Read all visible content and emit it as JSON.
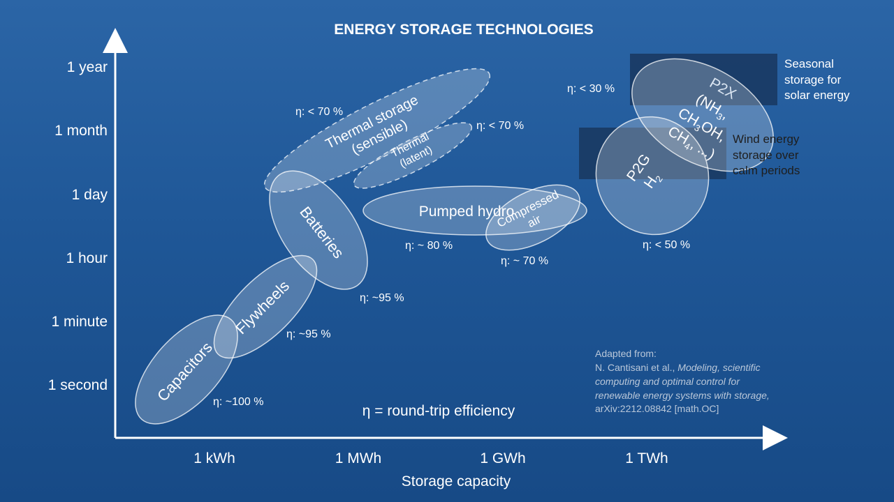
{
  "title": "ENERGY STORAGE TECHNOLOGIES",
  "y_axis": {
    "ticks": [
      "1 second",
      "1 minute",
      "1 hour",
      "1 day",
      "1 month",
      "1 year"
    ]
  },
  "x_axis": {
    "ticks": [
      "1 kWh",
      "1 MWh",
      "1 GWh",
      "1 TWh"
    ],
    "label": "Storage capacity"
  },
  "technologies": {
    "capacitors": {
      "label": "Capacitors",
      "efficiency": "η: ~100 %"
    },
    "flywheels": {
      "label": "Flywheels",
      "efficiency": "η: ~95 %"
    },
    "batteries": {
      "label": "Batteries",
      "efficiency": "η: ~95 %"
    },
    "thermal_sensible": {
      "label_line1": "Thermal storage",
      "label_line2": "(sensible)",
      "efficiency": "η: < 70 %"
    },
    "thermal_latent": {
      "label_line1": "Thermal",
      "label_line2": "(latent)",
      "efficiency": "η: < 70 %"
    },
    "pumped_hydro": {
      "label": "Pumped hydro",
      "efficiency": "η: ~ 80 %"
    },
    "compressed_air": {
      "label_line1": "Compressed",
      "label_line2": "air",
      "efficiency": "η: ~ 70 %"
    },
    "p2g": {
      "label_line1": "P2G",
      "label_line2": "H",
      "label_line2_sub": "2",
      "efficiency": "η: < 50 %"
    },
    "p2x": {
      "line1": "P2X",
      "line2_a": "(NH",
      "line2_sub": "3",
      "line2_b": ",",
      "line3_a": "CH",
      "line3_sub1": "3",
      "line3_b": "OH,",
      "line4_a": "CH",
      "line4_sub": "4",
      "line4_b": ", ...)",
      "efficiency": "η: < 30 %"
    }
  },
  "annotations": {
    "seasonal": [
      "Seasonal",
      "storage for",
      "solar energy"
    ],
    "wind": [
      "Wind energy",
      "storage over",
      "calm periods"
    ],
    "eta_definition": "η = round-trip efficiency"
  },
  "citation": {
    "line1": "Adapted from:",
    "line2_plain": "N. Cantisani et al., ",
    "line2_italic": "Modeling, scientific",
    "line3_italic": "computing and optimal control for",
    "line4_italic": "renewable energy systems with storage,",
    "line5": "arXiv:2212.08842 [math.OC]"
  },
  "colors": {
    "ellipse_fill": "#ffffff",
    "highlight_box": "#1a3a63",
    "citation_text": "#b9c7d9"
  }
}
